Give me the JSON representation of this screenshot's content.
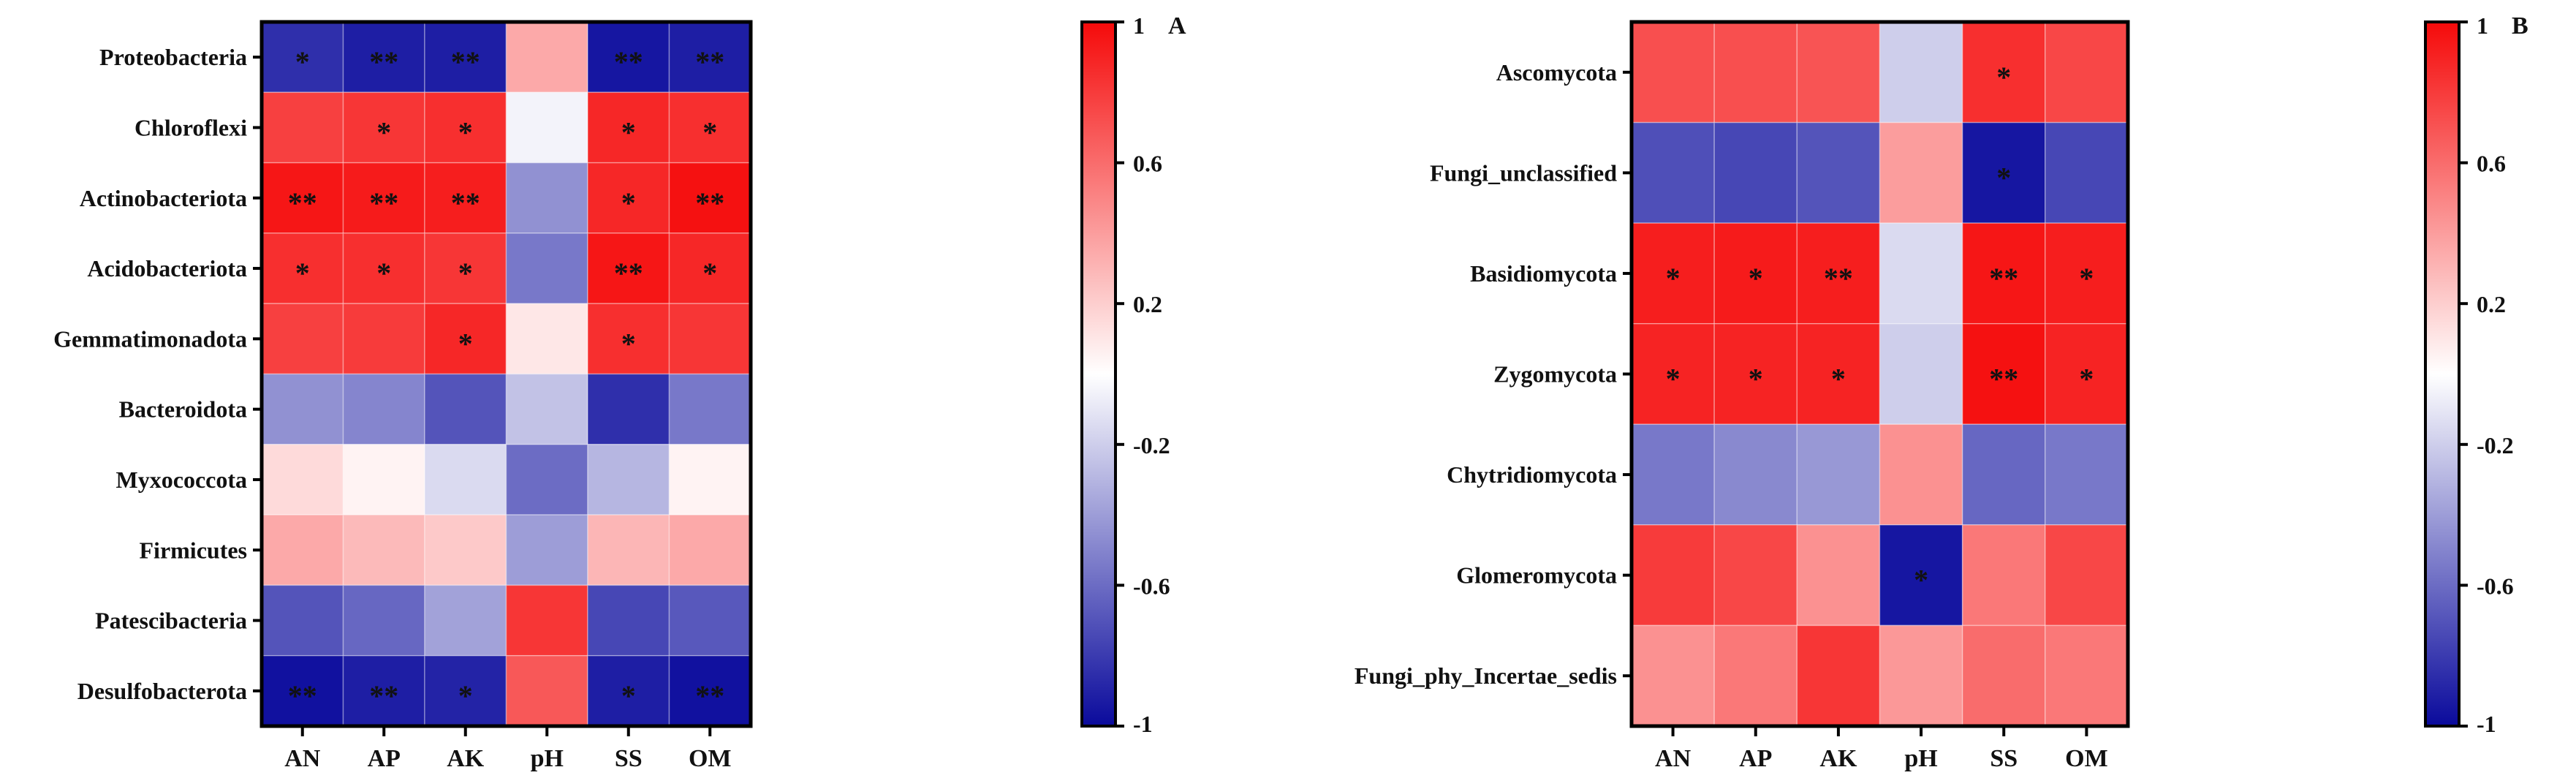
{
  "chart_data": [
    {
      "type": "heatmap",
      "panel_label": "A",
      "rows": [
        "Proteobacteria",
        "Chloroflexi",
        "Actinobacteriota",
        "Acidobacteriota",
        "Gemmatimonadota",
        "Bacteroidota",
        "Myxococcota",
        "Firmicutes",
        "Patescibacteria",
        "Desulfobacterota"
      ],
      "columns": [
        "AN",
        "AP",
        "AK",
        "pH",
        "SS",
        "OM"
      ],
      "values": [
        [
          -0.85,
          -0.92,
          -0.92,
          0.35,
          -0.95,
          -0.92
        ],
        [
          0.78,
          0.82,
          0.85,
          -0.05,
          0.88,
          0.85
        ],
        [
          0.95,
          0.93,
          0.92,
          -0.45,
          0.88,
          0.97
        ],
        [
          0.85,
          0.85,
          0.82,
          -0.55,
          0.95,
          0.88
        ],
        [
          0.78,
          0.8,
          0.88,
          0.1,
          0.85,
          0.82
        ],
        [
          -0.45,
          -0.5,
          -0.7,
          -0.25,
          -0.85,
          -0.55
        ],
        [
          0.15,
          0.05,
          -0.15,
          -0.6,
          -0.3,
          0.05
        ],
        [
          0.35,
          0.28,
          0.22,
          -0.4,
          0.3,
          0.35
        ],
        [
          -0.7,
          -0.62,
          -0.38,
          0.82,
          -0.75,
          -0.68
        ],
        [
          -0.97,
          -0.92,
          -0.9,
          0.68,
          -0.92,
          -0.97
        ]
      ],
      "significance": [
        [
          "*",
          "**",
          "**",
          "",
          "**",
          "**"
        ],
        [
          "",
          "*",
          "*",
          "",
          "*",
          "*"
        ],
        [
          "**",
          "**",
          "**",
          "",
          "*",
          "**"
        ],
        [
          "*",
          "*",
          "*",
          "",
          "**",
          "*"
        ],
        [
          "",
          "",
          "*",
          "",
          "*",
          ""
        ],
        [
          "",
          "",
          "",
          "",
          "",
          ""
        ],
        [
          "",
          "",
          "",
          "",
          "",
          ""
        ],
        [
          "",
          "",
          "",
          "",
          "",
          ""
        ],
        [
          "",
          "",
          "",
          "",
          "",
          ""
        ],
        [
          "**",
          "**",
          "*",
          "",
          "*",
          "**"
        ]
      ],
      "colorbar": {
        "min": -1,
        "max": 1,
        "ticks": [
          "1",
          "0.6",
          "0.2",
          "-0.2",
          "-0.6",
          "-1"
        ],
        "colors": {
          "low": "#0a0a9c",
          "mid": "#ffffff",
          "high": "#f50a0a"
        }
      }
    },
    {
      "type": "heatmap",
      "panel_label": "B",
      "rows": [
        "Ascomycota",
        "Fungi_unclassified",
        "Basidiomycota",
        "Zygomycota",
        "Chytridiomycota",
        "Glomeromycota",
        "Fungi_phy_Incertae_sedis"
      ],
      "columns": [
        "AN",
        "AP",
        "AK",
        "pH",
        "SS",
        "OM"
      ],
      "values": [
        [
          0.72,
          0.72,
          0.7,
          -0.2,
          0.85,
          0.75
        ],
        [
          -0.72,
          -0.75,
          -0.7,
          0.4,
          -0.95,
          -0.75
        ],
        [
          0.92,
          0.93,
          0.92,
          -0.15,
          0.95,
          0.92
        ],
        [
          0.9,
          0.9,
          0.9,
          -0.2,
          0.97,
          0.9
        ],
        [
          -0.55,
          -0.48,
          -0.42,
          0.45,
          -0.62,
          -0.55
        ],
        [
          0.8,
          0.75,
          0.45,
          -0.95,
          0.55,
          0.75
        ],
        [
          0.45,
          0.55,
          0.82,
          0.42,
          0.6,
          0.55
        ]
      ],
      "significance": [
        [
          "",
          "",
          "",
          "",
          "*",
          ""
        ],
        [
          "",
          "",
          "",
          "",
          "*",
          ""
        ],
        [
          "*",
          "*",
          "**",
          "",
          "**",
          "*"
        ],
        [
          "*",
          "*",
          "*",
          "",
          "**",
          "*"
        ],
        [
          "",
          "",
          "",
          "",
          "",
          ""
        ],
        [
          "",
          "",
          "",
          "*",
          "",
          ""
        ],
        [
          "",
          "",
          "",
          "",
          "",
          ""
        ]
      ],
      "colorbar": {
        "min": -1,
        "max": 1,
        "ticks": [
          "1",
          "0.6",
          "0.2",
          "-0.2",
          "-0.6",
          "-1"
        ],
        "colors": {
          "low": "#0a0a9c",
          "mid": "#ffffff",
          "high": "#f50a0a"
        }
      }
    }
  ]
}
